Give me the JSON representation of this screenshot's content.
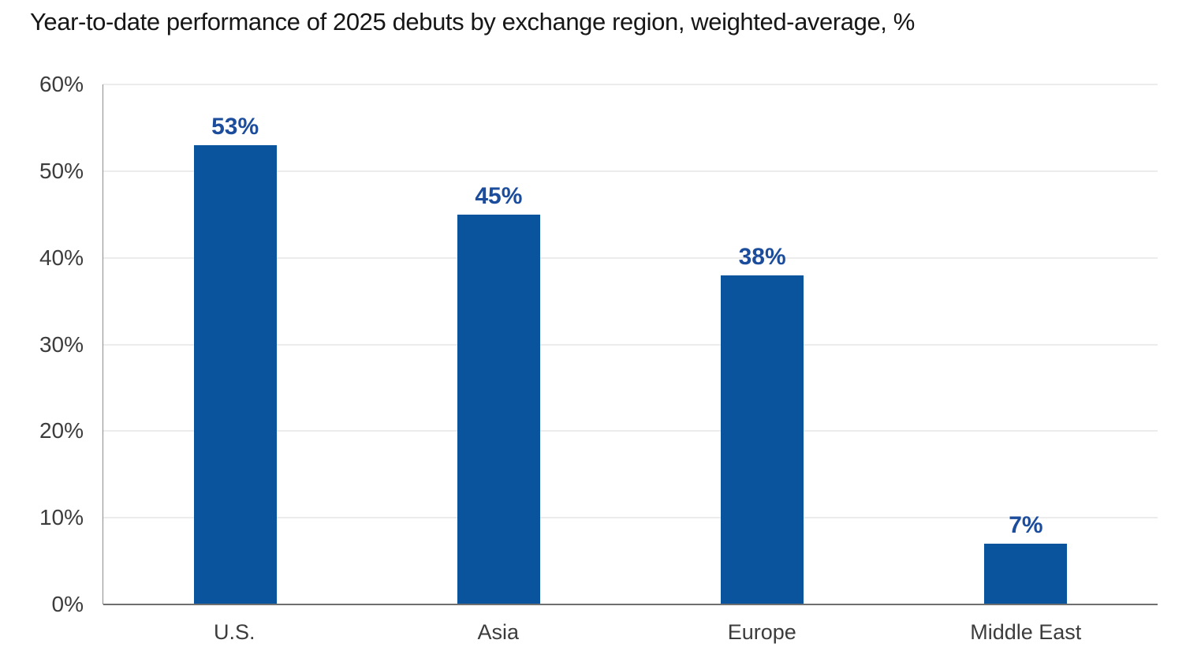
{
  "title": "Year-to-date performance of 2025 debuts by exchange region, weighted-average, %",
  "colors": {
    "bar": "#0a549e",
    "value_label": "#1c4c9c",
    "grid_line": "#d9d9d9",
    "axis_line": "#8c8c8c",
    "baseline": "#6f6f6f",
    "title_text": "#161616",
    "tick_text": "#3c3c3c"
  },
  "chart_data": {
    "type": "bar",
    "title": "Year-to-date performance of 2025 debuts by exchange region, weighted-average, %",
    "categories": [
      "U.S.",
      "Asia",
      "Europe",
      "Middle East"
    ],
    "values": [
      53,
      45,
      38,
      7
    ],
    "value_labels": [
      "53%",
      "45%",
      "38%",
      "7%"
    ],
    "xlabel": "",
    "ylabel": "",
    "ylim": [
      0,
      60
    ],
    "ytick_interval": 10,
    "ytick_labels": [
      "0%",
      "10%",
      "20%",
      "30%",
      "40%",
      "50%",
      "60%"
    ],
    "grid": "horizontal",
    "legend": "none"
  }
}
